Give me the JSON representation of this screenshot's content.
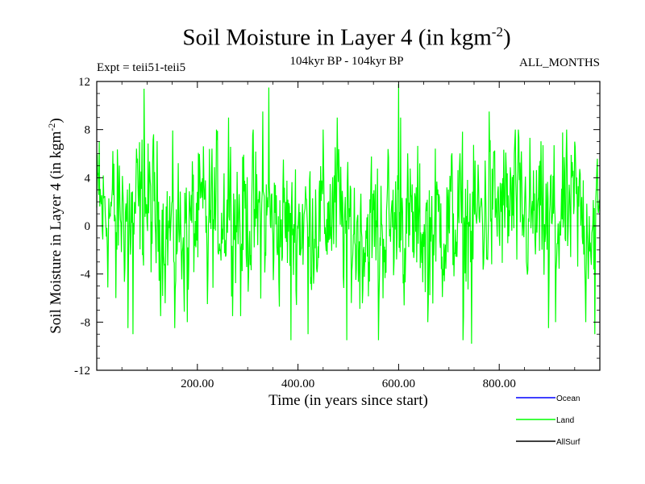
{
  "chart_data": {
    "type": "line",
    "title": "Soil Moisture in Layer 4 (in kgm",
    "title_sup": "-2",
    "title_end": ")",
    "subtitle": "104kyr BP - 104kyr BP",
    "left_note": "Expt = teii51-teii5",
    "right_note": "ALL_MONTHS",
    "xlabel": "Time (in years since start)",
    "ylabel": "Soil Moisture in Layer 4 (in kgm",
    "ylabel_sup": "-2",
    "ylabel_end": ")",
    "xlim": [
      0,
      1000
    ],
    "ylim": [
      -12,
      12
    ],
    "x_ticks": [
      200,
      400,
      600,
      800
    ],
    "x_tick_labels": [
      "200.00",
      "400.00",
      "600.00",
      "800.00"
    ],
    "y_ticks": [
      -12,
      -8,
      -4,
      0,
      4,
      8,
      12
    ],
    "y_tick_labels": [
      "-12",
      "-8",
      "-4",
      "0",
      "4",
      "8",
      "12"
    ],
    "grid": false,
    "legend_position": "bottom-right",
    "series": [
      {
        "name": "Ocean",
        "color": "#0000ff",
        "values": []
      },
      {
        "name": "Land",
        "color": "#00ff00",
        "peaks": [
          [
            5,
            7
          ],
          [
            38,
            -6
          ],
          [
            62,
            -8.5
          ],
          [
            72,
            -9
          ],
          [
            94,
            11.4
          ],
          [
            155,
            -8.5
          ],
          [
            180,
            -8
          ],
          [
            220,
            -6.5
          ],
          [
            262,
            9
          ],
          [
            286,
            -7.5
          ],
          [
            330,
            9.5
          ],
          [
            342,
            11.5
          ],
          [
            386,
            -9.5
          ],
          [
            420,
            -9
          ],
          [
            478,
            9
          ],
          [
            497,
            -9.5
          ],
          [
            560,
            -9.5
          ],
          [
            600,
            11.8
          ],
          [
            604,
            9
          ],
          [
            658,
            -8
          ],
          [
            728,
            -9.5
          ],
          [
            745,
            -9.8
          ],
          [
            780,
            9.5
          ],
          [
            830,
            6
          ],
          [
            898,
            -8.5
          ],
          [
            912,
            -8
          ],
          [
            950,
            7
          ],
          [
            972,
            -8
          ],
          [
            990,
            -9
          ]
        ],
        "level_segments": [
          [
            0,
            1.0
          ],
          [
            100,
            1.5
          ],
          [
            150,
            -0.5
          ],
          [
            210,
            0.5
          ],
          [
            260,
            1.5
          ],
          [
            350,
            0.0
          ],
          [
            420,
            0.5
          ],
          [
            470,
            1.2
          ],
          [
            520,
            -0.8
          ],
          [
            580,
            0.2
          ],
          [
            640,
            -0.3
          ],
          [
            700,
            0.3
          ],
          [
            760,
            0.8
          ],
          [
            820,
            1.5
          ],
          [
            880,
            0.2
          ],
          [
            940,
            1.0
          ],
          [
            1000,
            0.5
          ]
        ],
        "amplitude": 2.8
      },
      {
        "name": "AllSurf",
        "color": "#000000",
        "values": []
      }
    ]
  }
}
